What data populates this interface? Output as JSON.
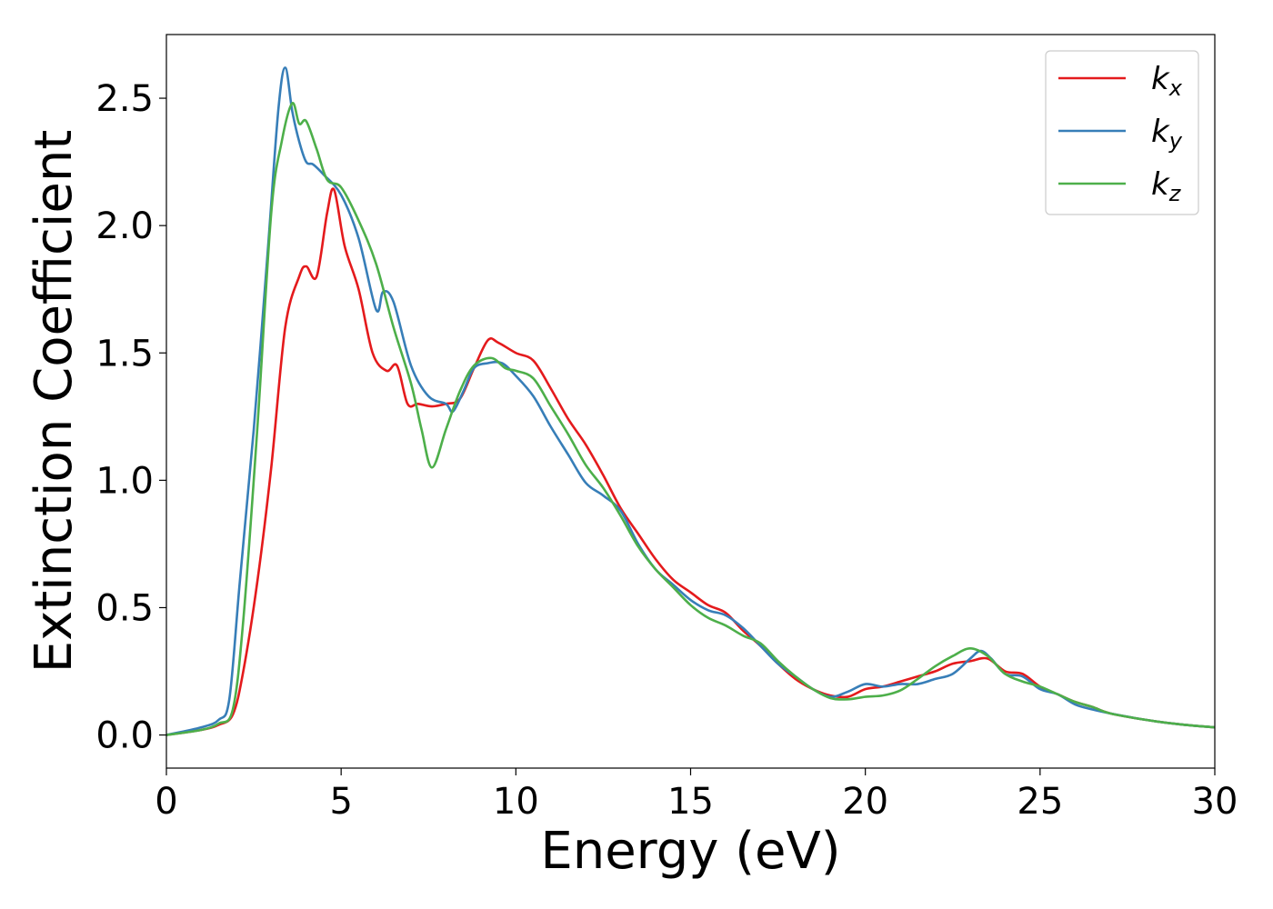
{
  "chart_data": {
    "type": "line",
    "xlabel": "Energy (eV)",
    "ylabel": "Extinction Coefficient",
    "xlim": [
      0,
      30
    ],
    "ylim": [
      -0.13,
      2.75
    ],
    "xticks": [
      0,
      5,
      10,
      15,
      20,
      25,
      30
    ],
    "xtick_labels": [
      "0",
      "5",
      "10",
      "15",
      "20",
      "25",
      "30"
    ],
    "yticks": [
      0.0,
      0.5,
      1.0,
      1.5,
      2.0,
      2.5
    ],
    "ytick_labels": [
      "0.0",
      "0.5",
      "1.0",
      "1.5",
      "2.0",
      "2.5"
    ],
    "grid": false,
    "legend_position": "top-right",
    "series": [
      {
        "name": "k",
        "subscript": "x",
        "color": "#e41a1c",
        "points": [
          [
            0,
            0.0
          ],
          [
            1,
            0.02
          ],
          [
            1.5,
            0.04
          ],
          [
            1.9,
            0.08
          ],
          [
            2.2,
            0.25
          ],
          [
            2.6,
            0.6
          ],
          [
            3.0,
            1.05
          ],
          [
            3.4,
            1.6
          ],
          [
            3.8,
            1.8
          ],
          [
            4.0,
            1.84
          ],
          [
            4.3,
            1.8
          ],
          [
            4.6,
            2.05
          ],
          [
            4.8,
            2.14
          ],
          [
            5.1,
            1.92
          ],
          [
            5.5,
            1.75
          ],
          [
            5.9,
            1.5
          ],
          [
            6.3,
            1.43
          ],
          [
            6.6,
            1.45
          ],
          [
            6.9,
            1.3
          ],
          [
            7.2,
            1.3
          ],
          [
            7.6,
            1.29
          ],
          [
            8.0,
            1.3
          ],
          [
            8.4,
            1.32
          ],
          [
            8.8,
            1.44
          ],
          [
            9.2,
            1.55
          ],
          [
            9.5,
            1.54
          ],
          [
            10.0,
            1.5
          ],
          [
            10.5,
            1.47
          ],
          [
            11.0,
            1.36
          ],
          [
            11.5,
            1.24
          ],
          [
            12.0,
            1.14
          ],
          [
            12.5,
            1.02
          ],
          [
            13.0,
            0.89
          ],
          [
            13.5,
            0.79
          ],
          [
            14.0,
            0.69
          ],
          [
            14.5,
            0.61
          ],
          [
            15.0,
            0.56
          ],
          [
            15.5,
            0.51
          ],
          [
            16.0,
            0.48
          ],
          [
            16.5,
            0.41
          ],
          [
            17.0,
            0.35
          ],
          [
            17.5,
            0.28
          ],
          [
            18.0,
            0.22
          ],
          [
            18.5,
            0.18
          ],
          [
            19.0,
            0.155
          ],
          [
            19.5,
            0.15
          ],
          [
            20.0,
            0.18
          ],
          [
            20.5,
            0.19
          ],
          [
            21.0,
            0.21
          ],
          [
            21.5,
            0.23
          ],
          [
            22.0,
            0.25
          ],
          [
            22.5,
            0.28
          ],
          [
            23.0,
            0.29
          ],
          [
            23.5,
            0.3
          ],
          [
            24.0,
            0.25
          ],
          [
            24.5,
            0.24
          ],
          [
            25.0,
            0.19
          ],
          [
            25.5,
            0.16
          ],
          [
            26.0,
            0.13
          ],
          [
            26.5,
            0.11
          ],
          [
            27.0,
            0.085
          ],
          [
            28.0,
            0.06
          ],
          [
            29.0,
            0.042
          ],
          [
            30.0,
            0.03
          ]
        ]
      },
      {
        "name": "k",
        "subscript": "y",
        "color": "#377eb8",
        "points": [
          [
            0,
            0.0
          ],
          [
            1,
            0.03
          ],
          [
            1.5,
            0.06
          ],
          [
            1.8,
            0.14
          ],
          [
            2.1,
            0.6
          ],
          [
            2.5,
            1.2
          ],
          [
            2.9,
            1.9
          ],
          [
            3.2,
            2.45
          ],
          [
            3.4,
            2.62
          ],
          [
            3.6,
            2.45
          ],
          [
            3.8,
            2.33
          ],
          [
            4.0,
            2.25
          ],
          [
            4.2,
            2.24
          ],
          [
            4.5,
            2.2
          ],
          [
            5.0,
            2.12
          ],
          [
            5.5,
            1.95
          ],
          [
            6.0,
            1.67
          ],
          [
            6.2,
            1.74
          ],
          [
            6.5,
            1.7
          ],
          [
            7.0,
            1.45
          ],
          [
            7.5,
            1.33
          ],
          [
            8.0,
            1.3
          ],
          [
            8.2,
            1.27
          ],
          [
            8.5,
            1.35
          ],
          [
            8.8,
            1.44
          ],
          [
            9.2,
            1.46
          ],
          [
            9.6,
            1.46
          ],
          [
            10.0,
            1.41
          ],
          [
            10.5,
            1.33
          ],
          [
            11.0,
            1.21
          ],
          [
            11.5,
            1.1
          ],
          [
            12.0,
            0.99
          ],
          [
            12.5,
            0.94
          ],
          [
            13.0,
            0.88
          ],
          [
            13.5,
            0.75
          ],
          [
            14.0,
            0.65
          ],
          [
            14.5,
            0.59
          ],
          [
            15.0,
            0.53
          ],
          [
            15.5,
            0.49
          ],
          [
            16.0,
            0.47
          ],
          [
            16.5,
            0.42
          ],
          [
            17.0,
            0.35
          ],
          [
            17.5,
            0.28
          ],
          [
            18.0,
            0.23
          ],
          [
            18.5,
            0.18
          ],
          [
            19.0,
            0.15
          ],
          [
            19.5,
            0.17
          ],
          [
            20.0,
            0.2
          ],
          [
            20.5,
            0.19
          ],
          [
            21.0,
            0.2
          ],
          [
            21.5,
            0.2
          ],
          [
            22.0,
            0.22
          ],
          [
            22.5,
            0.24
          ],
          [
            23.0,
            0.3
          ],
          [
            23.3,
            0.33
          ],
          [
            23.6,
            0.3
          ],
          [
            24.0,
            0.24
          ],
          [
            24.5,
            0.23
          ],
          [
            25.0,
            0.18
          ],
          [
            25.5,
            0.16
          ],
          [
            26.0,
            0.12
          ],
          [
            26.5,
            0.1
          ],
          [
            27.0,
            0.085
          ],
          [
            28.0,
            0.06
          ],
          [
            29.0,
            0.042
          ],
          [
            30.0,
            0.03
          ]
        ]
      },
      {
        "name": "k",
        "subscript": "z",
        "color": "#4daf4a",
        "points": [
          [
            0,
            0.0
          ],
          [
            1,
            0.02
          ],
          [
            1.5,
            0.045
          ],
          [
            1.9,
            0.1
          ],
          [
            2.2,
            0.45
          ],
          [
            2.6,
            1.2
          ],
          [
            3.0,
            2.05
          ],
          [
            3.3,
            2.33
          ],
          [
            3.6,
            2.48
          ],
          [
            3.8,
            2.4
          ],
          [
            4.0,
            2.41
          ],
          [
            4.3,
            2.3
          ],
          [
            4.6,
            2.18
          ],
          [
            5.0,
            2.15
          ],
          [
            5.5,
            2.02
          ],
          [
            6.0,
            1.85
          ],
          [
            6.5,
            1.6
          ],
          [
            7.0,
            1.38
          ],
          [
            7.3,
            1.2
          ],
          [
            7.6,
            1.05
          ],
          [
            8.0,
            1.2
          ],
          [
            8.4,
            1.35
          ],
          [
            8.8,
            1.45
          ],
          [
            9.3,
            1.48
          ],
          [
            9.7,
            1.44
          ],
          [
            10.0,
            1.43
          ],
          [
            10.5,
            1.4
          ],
          [
            11.0,
            1.29
          ],
          [
            11.5,
            1.18
          ],
          [
            12.0,
            1.06
          ],
          [
            12.5,
            0.97
          ],
          [
            13.0,
            0.86
          ],
          [
            13.5,
            0.74
          ],
          [
            14.0,
            0.65
          ],
          [
            14.5,
            0.58
          ],
          [
            15.0,
            0.51
          ],
          [
            15.5,
            0.46
          ],
          [
            16.0,
            0.43
          ],
          [
            16.5,
            0.39
          ],
          [
            17.0,
            0.36
          ],
          [
            17.5,
            0.29
          ],
          [
            18.0,
            0.23
          ],
          [
            18.5,
            0.18
          ],
          [
            19.0,
            0.145
          ],
          [
            19.5,
            0.14
          ],
          [
            20.0,
            0.15
          ],
          [
            20.5,
            0.155
          ],
          [
            21.0,
            0.175
          ],
          [
            21.5,
            0.22
          ],
          [
            22.0,
            0.27
          ],
          [
            22.5,
            0.31
          ],
          [
            23.0,
            0.34
          ],
          [
            23.5,
            0.31
          ],
          [
            24.0,
            0.24
          ],
          [
            24.5,
            0.21
          ],
          [
            25.0,
            0.19
          ],
          [
            25.5,
            0.16
          ],
          [
            26.0,
            0.13
          ],
          [
            26.5,
            0.11
          ],
          [
            27.0,
            0.085
          ],
          [
            28.0,
            0.06
          ],
          [
            29.0,
            0.042
          ],
          [
            30.0,
            0.03
          ]
        ]
      }
    ]
  }
}
